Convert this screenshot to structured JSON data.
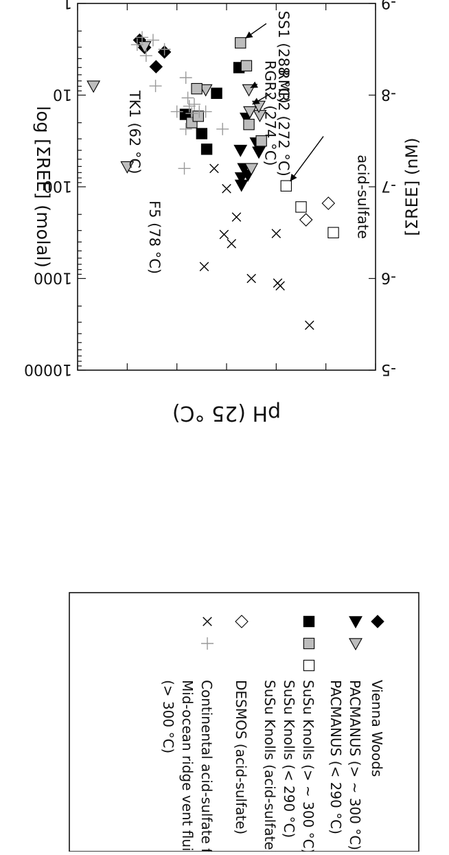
{
  "chart_data": {
    "type": "scatter",
    "title": "",
    "xlabel": "pH (25 °C)",
    "ylabel": "log [ΣREE] (molal)",
    "y2label": "[ΣREE] (nM)",
    "xlim": [
      0,
      6
    ],
    "ylim": [
      -9,
      -5
    ],
    "x_ticks": [
      "0",
      "1",
      "2",
      "3",
      "4",
      "5",
      "6"
    ],
    "y_ticks": [
      "-5",
      "-6",
      "-7",
      "-8",
      "-9"
    ],
    "y2_ticks": [
      "10000",
      "1000",
      "100",
      "10",
      "1"
    ],
    "legend_position": "right",
    "series": [
      {
        "name": "Vienna Woods",
        "marker": "diamond",
        "fill": "#000000",
        "points": [
          [
            4.25,
            -8.47
          ],
          [
            4.42,
            -8.31
          ],
          [
            4.65,
            -8.52
          ],
          [
            4.75,
            -8.6
          ]
        ]
      },
      {
        "name": "PACMANUS (> ~ 300 °C)",
        "marker": "triangle",
        "fill": "#000000",
        "points": [
          [
            2.57,
            -7.13
          ],
          [
            2.65,
            -7.2
          ],
          [
            2.7,
            -7.02
          ],
          [
            2.7,
            -7.1
          ],
          [
            2.35,
            -7.38
          ],
          [
            2.4,
            -7.48
          ],
          [
            2.6,
            -7.75
          ],
          [
            2.72,
            -7.4
          ]
        ]
      },
      {
        "name": "PACMANUS (< 290 °C)",
        "marker": "triangle",
        "fill": "#bdbdbd",
        "points": [
          [
            2.5,
            -7.2
          ],
          [
            2.33,
            -7.78
          ],
          [
            2.35,
            -7.88
          ],
          [
            2.53,
            -7.82
          ],
          [
            2.55,
            -8.06
          ],
          [
            3.42,
            -8.06
          ],
          [
            5.0,
            -7.22
          ],
          [
            5.68,
            -8.1
          ],
          [
            4.65,
            -8.53
          ]
        ]
      },
      {
        "name": "SuSu Knolls (> ~ 300 °C)",
        "marker": "square",
        "fill": "#000000",
        "points": [
          [
            3.4,
            -7.41
          ],
          [
            3.5,
            -7.58
          ],
          [
            3.83,
            -7.79
          ],
          [
            3.2,
            -8.02
          ],
          [
            2.75,
            -8.3
          ]
        ]
      },
      {
        "name": "SuSu Knolls (< 290 °C)",
        "marker": "square",
        "fill": "#bdbdbd",
        "points": [
          [
            2.3,
            -7.5
          ],
          [
            2.55,
            -7.68
          ],
          [
            3.7,
            -7.7
          ],
          [
            3.57,
            -7.77
          ],
          [
            3.6,
            -8.07
          ],
          [
            2.6,
            -8.32
          ],
          [
            2.72,
            -8.57
          ]
        ]
      },
      {
        "name": "SuSu Knolls (acid-sulfate)",
        "marker": "square",
        "fill": "#ffffff",
        "points": [
          [
            0.85,
            -6.5
          ],
          [
            1.5,
            -6.78
          ],
          [
            1.8,
            -7.01
          ]
        ]
      },
      {
        "name": "DESMOS (acid-sulfate)",
        "marker": "diamond",
        "fill": "#ffffff",
        "points": [
          [
            1.4,
            -6.64
          ],
          [
            0.95,
            -6.82
          ]
        ]
      },
      {
        "name": "Continental acid-sulfate fluids",
        "marker": "x",
        "fill": "#000000",
        "points": [
          [
            1.33,
            -5.49
          ],
          [
            1.92,
            -5.92
          ],
          [
            1.97,
            -5.95
          ],
          [
            2.0,
            -6.49
          ],
          [
            2.5,
            -6.0
          ],
          [
            2.8,
            -6.67
          ],
          [
            2.9,
            -6.38
          ],
          [
            3.05,
            -6.48
          ],
          [
            3.0,
            -6.98
          ],
          [
            3.25,
            -7.2
          ],
          [
            3.45,
            -6.13
          ]
        ]
      },
      {
        "name": "Mid-ocean ridge vent fluids (> 300 °C)",
        "marker": "plus",
        "fill": "#999999",
        "points": [
          [
            3.08,
            -7.63
          ],
          [
            3.42,
            -7.82
          ],
          [
            3.55,
            -7.82
          ],
          [
            3.7,
            -7.8
          ],
          [
            3.75,
            -7.88
          ],
          [
            3.78,
            -7.97
          ],
          [
            3.82,
            -7.63
          ],
          [
            3.85,
            -7.2
          ],
          [
            4.0,
            -7.82
          ],
          [
            3.82,
            -8.19
          ],
          [
            3.65,
            -7.9
          ],
          [
            4.43,
            -8.1
          ],
          [
            4.25,
            -8.5
          ],
          [
            4.48,
            -8.6
          ],
          [
            4.62,
            -8.43
          ],
          [
            4.7,
            -8.63
          ],
          [
            4.8,
            -8.55
          ]
        ]
      }
    ],
    "annotations": [
      {
        "text": "acid-sulfate"
      },
      {
        "text": "F5 (78 °C)"
      },
      {
        "text": "TK1 (62 °C)"
      },
      {
        "text": "RMR2 (272 °C)"
      },
      {
        "text": "RGR2 (274 °C)"
      },
      {
        "text": "SS1 (288 °C)"
      }
    ]
  },
  "legend": {
    "items": [
      {
        "label": "Vienna Woods",
        "markers": [
          [
            "diamond",
            "#000000"
          ]
        ]
      },
      {
        "label": "PACMANUS (> ~ 300 °C)",
        "markers": [
          [
            "triangle",
            "#000000"
          ],
          [
            "triangle",
            "#bdbdbd"
          ]
        ]
      },
      {
        "label": "PACMANUS (< 290 °C)",
        "markers": []
      },
      {
        "label": "SuSu Knolls (> ~ 300 °C)",
        "markers": [
          [
            "square",
            "#000000"
          ],
          [
            "square",
            "#bdbdbd"
          ],
          [
            "square",
            "#ffffff"
          ]
        ]
      },
      {
        "label": "SuSu Knolls (< 290 °C)",
        "markers": []
      },
      {
        "label": "SuSu Knolls (acid-sulfate)",
        "markers": []
      },
      {
        "label": "DESMOS (acid-sulfate)",
        "markers": [
          [
            "diamond",
            "#ffffff"
          ]
        ]
      },
      {
        "label": "Continental acid-sulfate fluids",
        "markers": [
          [
            "x",
            "#000000"
          ],
          [
            "plus",
            "#999999"
          ]
        ]
      },
      {
        "label": "Mid-ocean ridge vent fluids",
        "markers": []
      },
      {
        "label": "(> 300 °C)",
        "markers": []
      }
    ]
  }
}
